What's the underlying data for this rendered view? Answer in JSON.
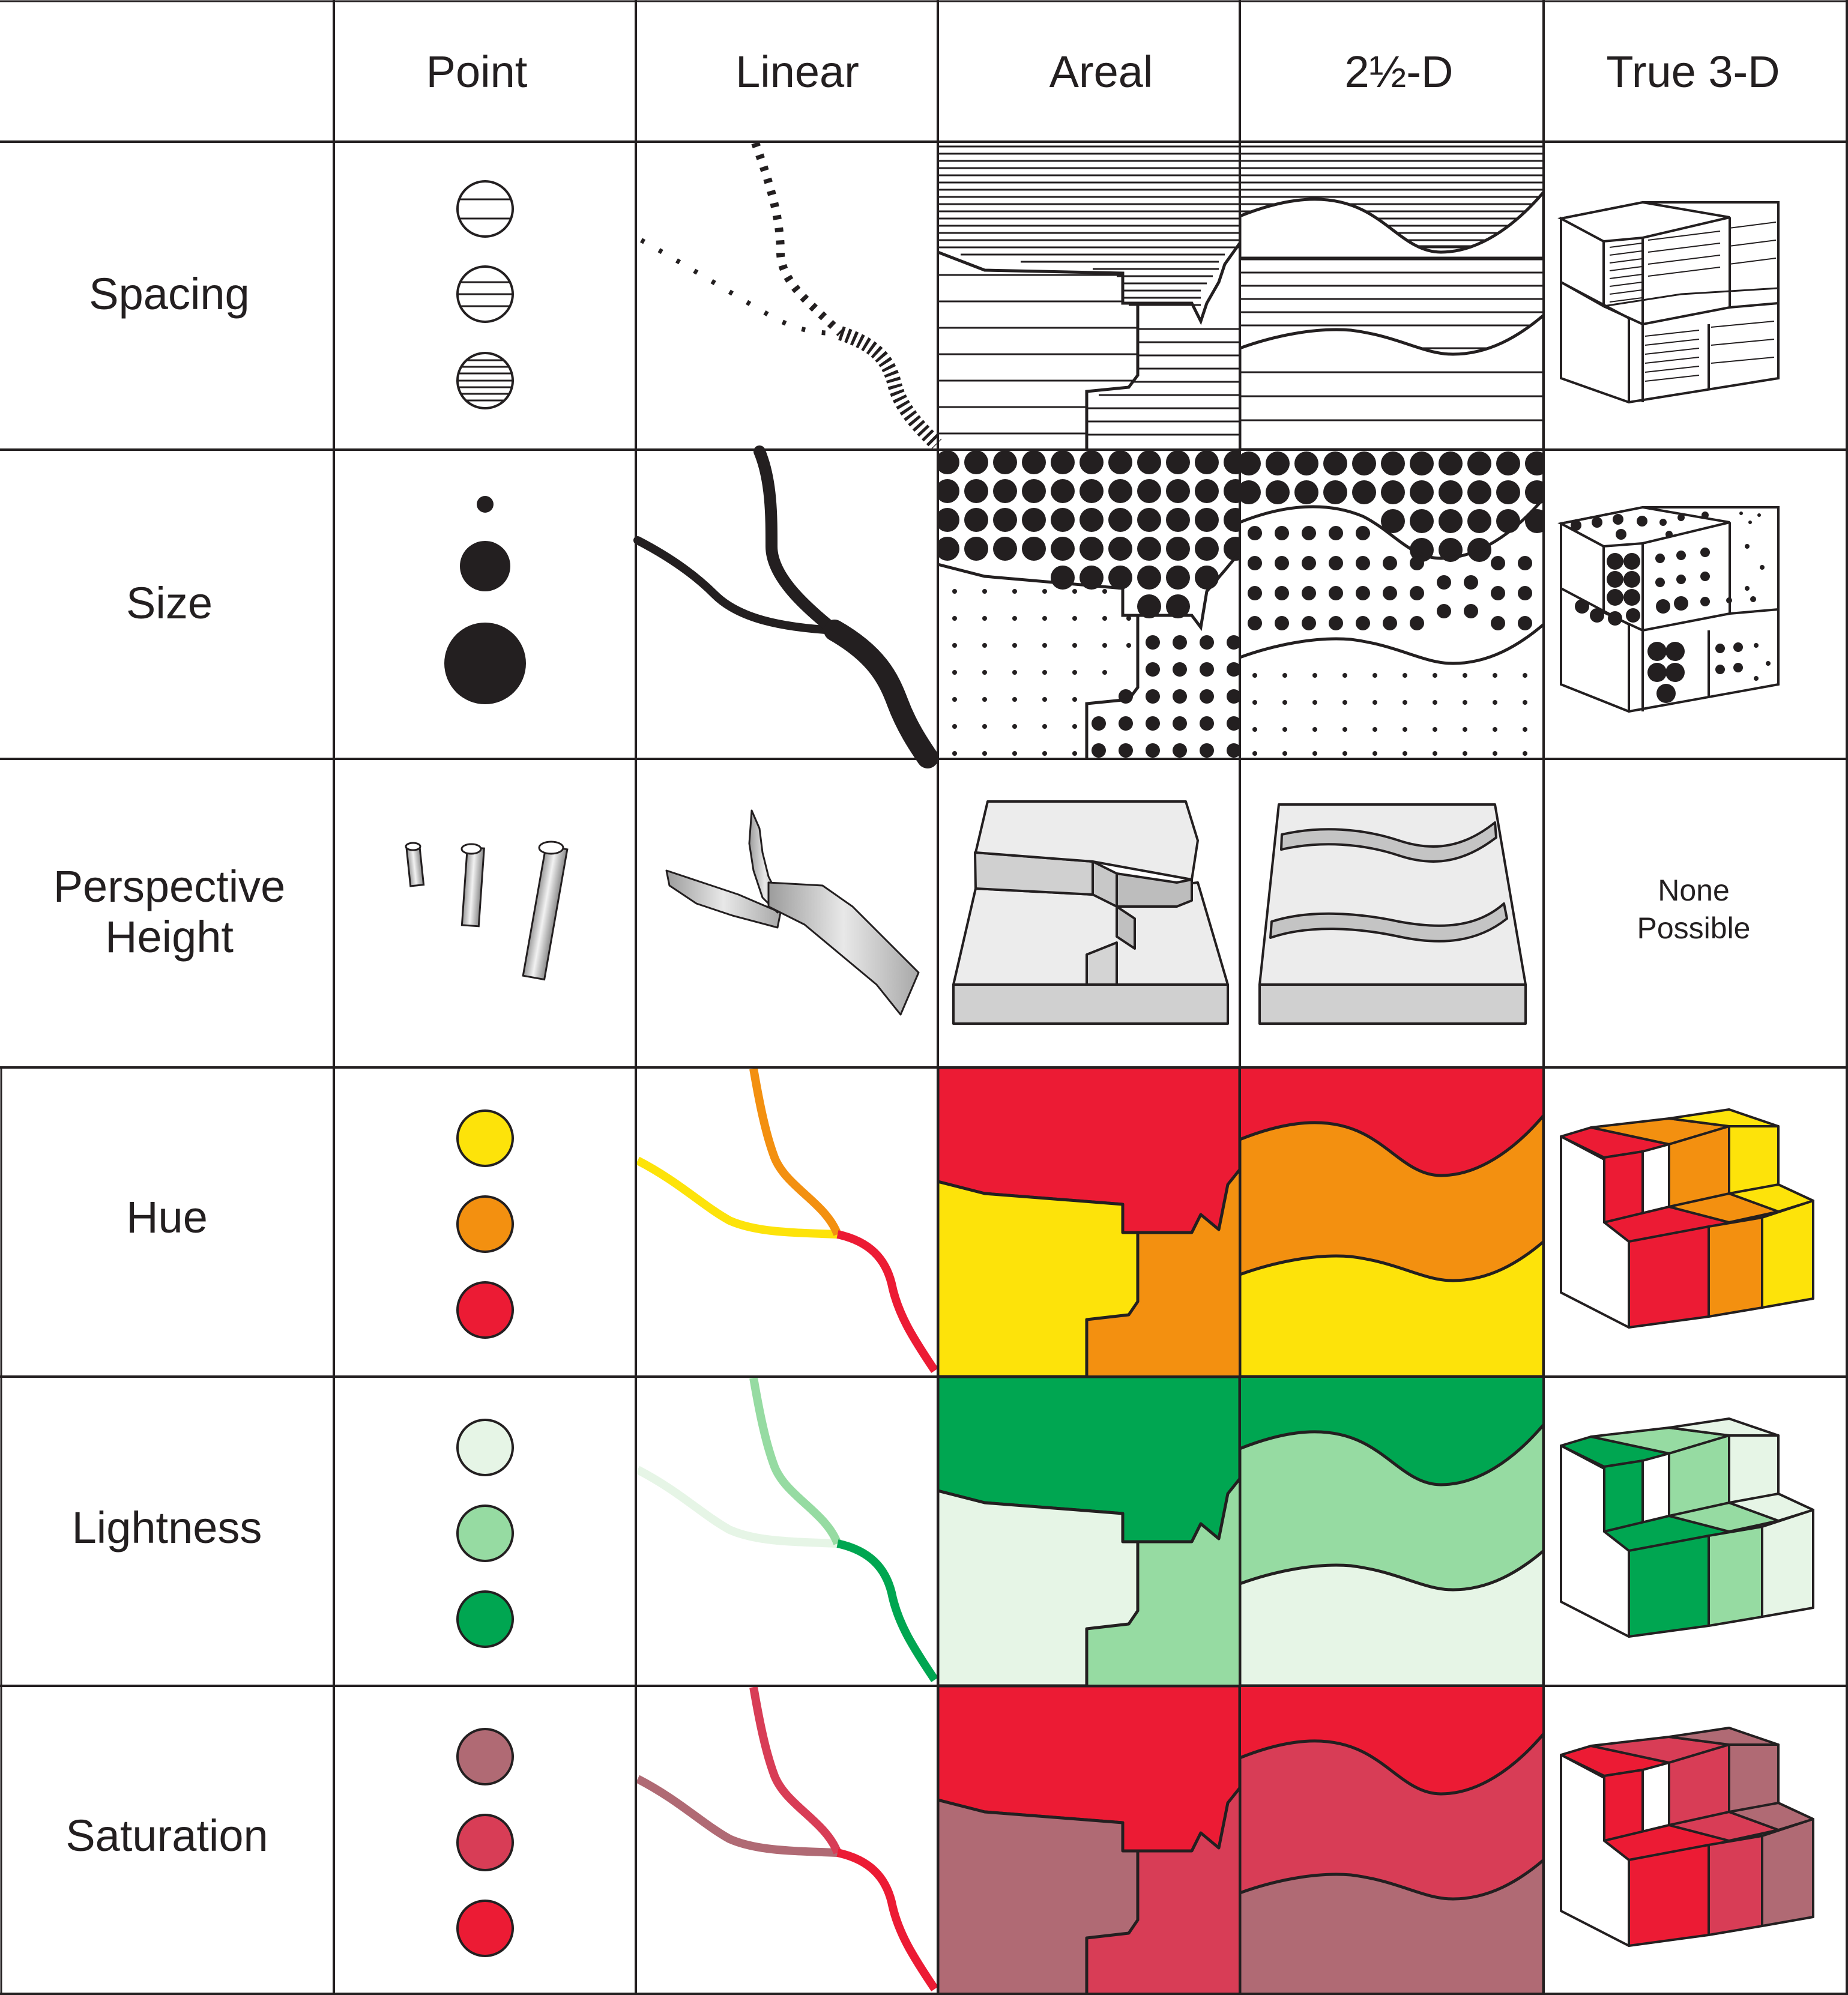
{
  "columns": [
    "Point",
    "Linear",
    "Areal",
    "2½-D",
    "True 3-D"
  ],
  "rows": [
    {
      "id": "spacing",
      "label": [
        "Spacing"
      ]
    },
    {
      "id": "size",
      "label": [
        "Size"
      ]
    },
    {
      "id": "perspective",
      "label": [
        "Perspective",
        "Height"
      ]
    },
    {
      "id": "hue",
      "label": [
        "Hue"
      ]
    },
    {
      "id": "lightness",
      "label": [
        "Lightness"
      ]
    },
    {
      "id": "saturation",
      "label": [
        "Saturation"
      ]
    }
  ],
  "none_possible": [
    "None",
    "Possible"
  ],
  "palettes": {
    "hue": [
      "#fde30a",
      "#f39010",
      "#ec1b34"
    ],
    "lightness": [
      "#e6f5e6",
      "#96dba2",
      "#00a651"
    ],
    "saturation": [
      "#b06a74",
      "#d83d56",
      "#ec1b34"
    ]
  },
  "colors": {
    "ink": "#231f20",
    "gray_face": "#ececec",
    "gray_side": "#c9c9c9"
  }
}
